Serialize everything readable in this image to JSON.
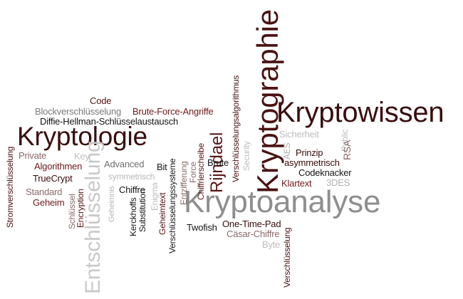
{
  "palette": {
    "dark": "#3a0e0e",
    "maroon": "#6e1a1a",
    "mauve": "#8a6a6a",
    "grey": "#9a9a9a",
    "lightgrey": "#c4c4c4",
    "black": "#161616"
  },
  "words": [
    "Kryptowissen",
    "Kryptographie",
    "Kryptoanalyse",
    "Kryptologie",
    "Entschlüsselung",
    "Rijndael",
    "Verschlüsselungssysteme",
    "Verschlüsselungsalgorithmus",
    "Verschlüsselung",
    "Stromverschlüsselung",
    "Blockverschlüsselung",
    "Brute-Force-Angriffe",
    "Diffie-Hellman-Schlüsselaustausch",
    "Code",
    "Private",
    "Key",
    "Algorithmen",
    "Advanced",
    "TrueCrypt",
    "Standard",
    "Geheim",
    "Schlüssel",
    "Encryption",
    "Geheimnis",
    "symmetrisch",
    "Chiffre",
    "Kerckhoffs",
    "Substitution",
    "Bit",
    "Enigma",
    "Geheimtext",
    "Entzifferung",
    "Force",
    "Brute",
    "Chiffrierscheibe",
    "Security",
    "Sicherheit",
    "AES",
    "Public",
    "RSA",
    "Prinzip",
    "asymmetrisch",
    "Codeknacker",
    "Klartext",
    "3DES",
    "Twofish",
    "One-Time-Pad",
    "Cäsar-Chiffre",
    "Byte"
  ]
}
